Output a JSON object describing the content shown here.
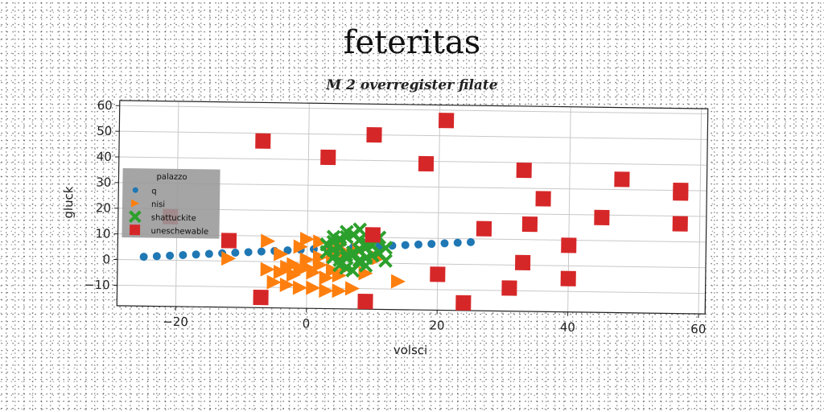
{
  "chart_data": {
    "type": "scatter",
    "title": "feteritas",
    "subtitle": "M 2 overregister filate",
    "xlabel": "volsci",
    "ylabel": "gluck",
    "xlim": [
      -29,
      61
    ],
    "ylim": [
      -18,
      62
    ],
    "xticks": [
      "−20",
      "0",
      "20",
      "40",
      "60"
    ],
    "xtick_values": [
      -20,
      0,
      20,
      40,
      60
    ],
    "yticks": [
      "−10",
      "0",
      "10",
      "20",
      "30",
      "40",
      "50",
      "60"
    ],
    "ytick_values": [
      -10,
      0,
      10,
      20,
      30,
      40,
      50,
      60
    ],
    "grid": true,
    "legend": {
      "title": "palazzo",
      "placement": "center-left"
    },
    "series": [
      {
        "name": "q",
        "marker": "circle",
        "color": "#1f77b4",
        "x": [
          -25,
          -23,
          -21,
          -19,
          -17,
          -15,
          -13,
          -11,
          -9,
          -7,
          -5,
          -3,
          -1,
          1,
          3,
          5,
          7,
          9,
          11,
          13,
          15,
          17,
          19,
          21,
          23,
          25
        ],
        "y": [
          1.2,
          1.5,
          1.8,
          2.1,
          2.4,
          2.7,
          3.0,
          3.3,
          3.6,
          3.9,
          4.2,
          4.5,
          4.8,
          5.1,
          5.4,
          5.7,
          6.0,
          6.3,
          6.6,
          6.9,
          7.2,
          7.5,
          7.8,
          8.1,
          8.4,
          8.7
        ]
      },
      {
        "name": "nisi",
        "marker": "triangle-right",
        "color": "#ff7f0e",
        "x": [
          -6,
          -4,
          -3,
          -2,
          -1,
          0,
          1,
          2,
          3,
          4,
          5,
          6,
          -5,
          -3,
          -1,
          1,
          3,
          5,
          7,
          9,
          -2,
          0,
          2,
          4,
          6,
          8,
          -4,
          -1,
          2,
          5,
          8,
          11,
          14,
          -12,
          -6,
          0
        ],
        "y": [
          -3,
          -4,
          -2,
          -5,
          -3,
          -2,
          -4,
          -1,
          -6,
          -3,
          -5,
          -2,
          -8,
          -9,
          -10,
          -10,
          -11,
          -11,
          -10,
          -4,
          -1,
          1,
          2,
          3,
          4,
          5,
          3,
          6,
          8,
          7,
          5,
          2,
          -7,
          1,
          8,
          9
        ]
      },
      {
        "name": "shattuckite",
        "marker": "x",
        "color": "#2ca02c",
        "x": [
          3,
          4,
          5,
          6,
          7,
          8,
          9,
          10,
          11,
          12,
          3,
          4,
          5,
          6,
          7,
          8,
          9,
          10,
          11,
          4,
          5,
          6,
          7,
          8,
          9,
          10,
          5,
          6,
          7,
          8,
          9,
          4,
          6,
          8,
          10,
          12
        ],
        "y": [
          7,
          8,
          9,
          10,
          11,
          9,
          8,
          7,
          10,
          6,
          4,
          5,
          6,
          3,
          4,
          5,
          6,
          3,
          4,
          2,
          1,
          2,
          3,
          1,
          2,
          3,
          -1,
          -2,
          -3,
          0,
          -1,
          10,
          12,
          13,
          11,
          1
        ]
      },
      {
        "name": "uneschewable",
        "marker": "square",
        "color": "#d62728",
        "x": [
          -7,
          3,
          10,
          18,
          21,
          33,
          48,
          57,
          -12,
          -7,
          9,
          10,
          24,
          33,
          40,
          40,
          20,
          36,
          45,
          57,
          34,
          31,
          27,
          57,
          -21
        ],
        "y": [
          47,
          41,
          50,
          39,
          56,
          37,
          34,
          29,
          8,
          -14,
          -15,
          11,
          -15,
          1,
          8,
          -5,
          -4,
          26,
          19,
          17,
          16,
          -9,
          14,
          30,
          17
        ]
      }
    ]
  }
}
